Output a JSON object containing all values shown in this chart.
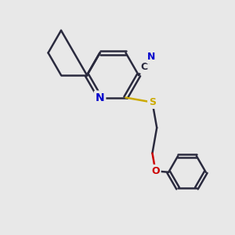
{
  "bg_color": "#e8e8e8",
  "bond_color": "#2a2a3e",
  "N_color": "#0000cc",
  "S_color": "#ccaa00",
  "O_color": "#cc0000",
  "C_color": "#2a2a3e",
  "line_width": 1.8,
  "figsize": [
    3.0,
    3.0
  ],
  "dpi": 100,
  "xlim": [
    0,
    10
  ],
  "ylim": [
    0,
    10
  ]
}
